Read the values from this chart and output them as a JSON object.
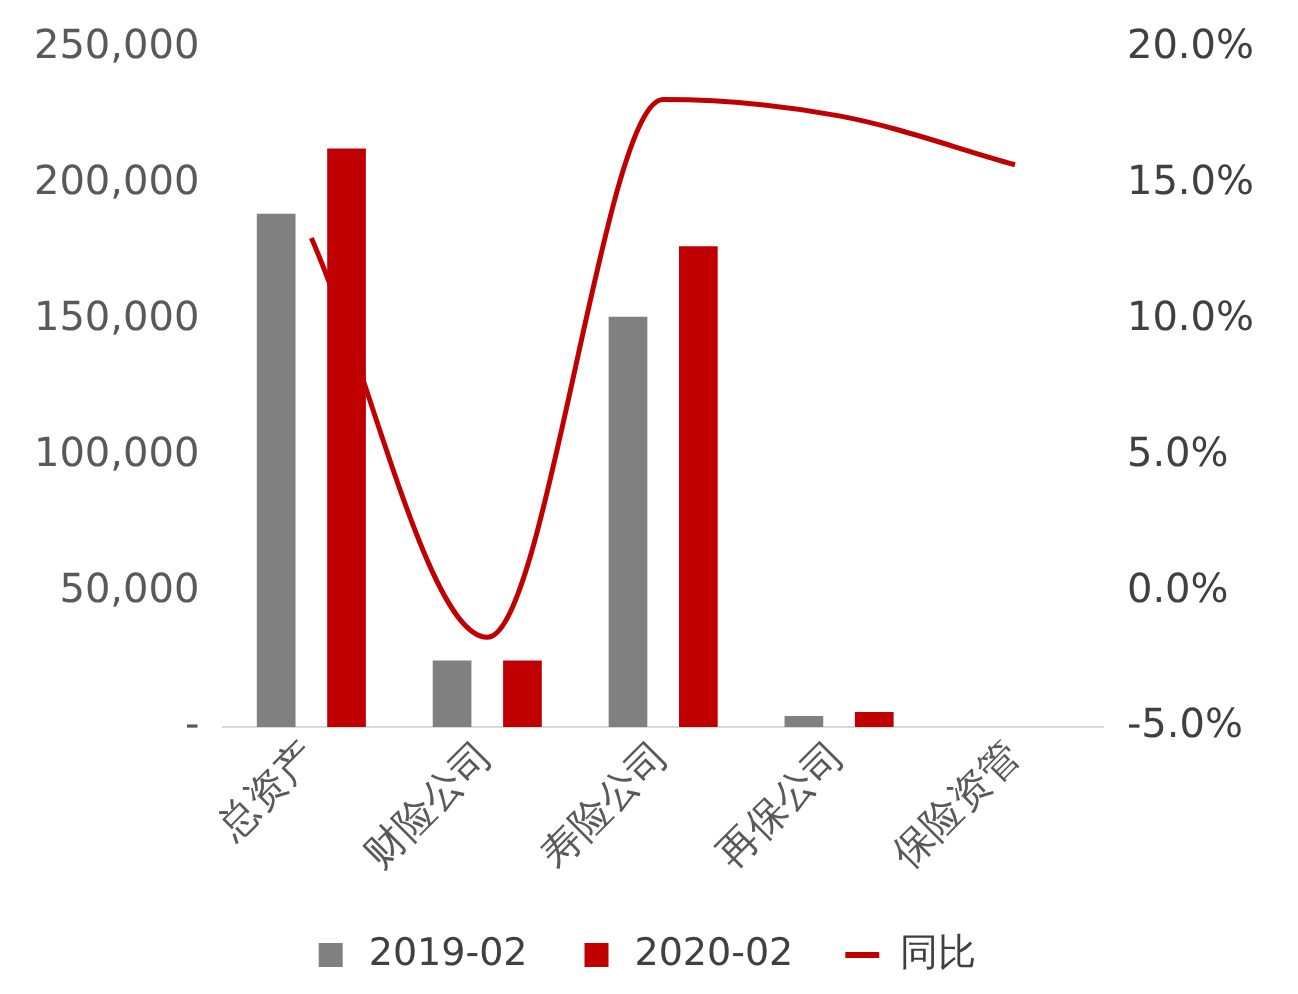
{
  "chart_data": {
    "type": "bar",
    "categories": [
      "总资产",
      "财险公司",
      "寿险公司",
      "再保公司",
      "保险资管"
    ],
    "series": [
      {
        "name": "2019-02",
        "color": "#808080",
        "values": [
          189000,
          24500,
          151000,
          4000,
          0
        ]
      },
      {
        "name": "2020-02",
        "color": "#c00000",
        "values": [
          213000,
          24500,
          177000,
          5500,
          0
        ]
      },
      {
        "name": "同比",
        "type": "line",
        "axis": "y2",
        "color": "#c00000",
        "values": [
          13.0,
          -1.7,
          18.1,
          17.5,
          15.7
        ]
      }
    ],
    "ylim": [
      0,
      250000
    ],
    "yticks": [
      {
        "value": 0,
        "label": "-"
      },
      {
        "value": 50000,
        "label": "50,000"
      },
      {
        "value": 100000,
        "label": "100,000"
      },
      {
        "value": 150000,
        "label": "150,000"
      },
      {
        "value": 200000,
        "label": "200,000"
      },
      {
        "value": 250000,
        "label": "250,000"
      }
    ],
    "y2lim": [
      -5,
      20
    ],
    "y2ticks": [
      {
        "value": -5,
        "label": "-5.0%"
      },
      {
        "value": 0,
        "label": "0.0%"
      },
      {
        "value": 5,
        "label": "5.0%"
      },
      {
        "value": 10,
        "label": "10.0%"
      },
      {
        "value": 15,
        "label": "15.0%"
      },
      {
        "value": 20,
        "label": "20.0%"
      }
    ],
    "grid": false,
    "legend": "bottom",
    "marker": "none"
  }
}
